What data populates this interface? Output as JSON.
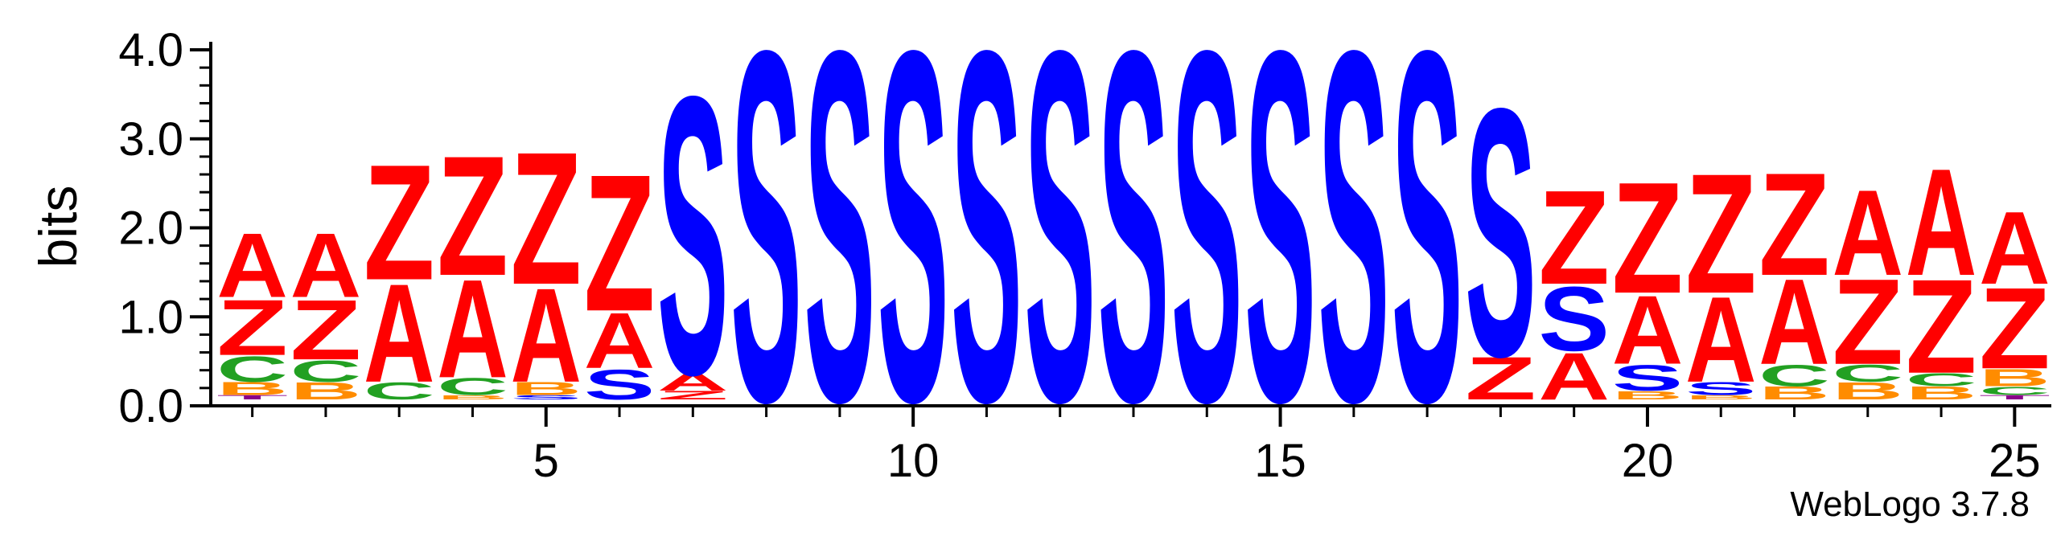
{
  "chart_data": {
    "type": "sequence-logo",
    "ylabel": "bits",
    "ylim": [
      0,
      4.0
    ],
    "y_ticks": [
      "0.0",
      "1.0",
      "2.0",
      "3.0",
      "4.0"
    ],
    "x_ticks": [
      "5",
      "10",
      "15",
      "20",
      "25"
    ],
    "x_range": [
      1,
      25
    ],
    "colors": {
      "A": "#ff0000",
      "Z": "#ff0000",
      "S": "#0000ff",
      "C": "#22a022",
      "B": "#ff8c00",
      "T": "#8a008a"
    },
    "positions": [
      {
        "pos": 1,
        "stack": [
          [
            "T",
            0.05
          ],
          [
            "B",
            0.15
          ],
          [
            "C",
            0.3
          ],
          [
            "Z",
            0.65
          ],
          [
            "A",
            0.75
          ]
        ]
      },
      {
        "pos": 2,
        "stack": [
          [
            "B",
            0.2
          ],
          [
            "C",
            0.25
          ],
          [
            "Z",
            0.7
          ],
          [
            "A",
            0.75
          ]
        ]
      },
      {
        "pos": 3,
        "stack": [
          [
            "C",
            0.2
          ],
          [
            "A",
            1.15
          ],
          [
            "Z",
            1.35
          ]
        ]
      },
      {
        "pos": 4,
        "stack": [
          [
            "B",
            0.05
          ],
          [
            "C",
            0.2
          ],
          [
            "A",
            1.15
          ],
          [
            "Z",
            1.4
          ]
        ]
      },
      {
        "pos": 5,
        "stack": [
          [
            "S",
            0.05
          ],
          [
            "B",
            0.15
          ],
          [
            "A",
            1.1
          ],
          [
            "Z",
            1.55
          ]
        ]
      },
      {
        "pos": 6,
        "stack": [
          [
            "S",
            0.35
          ],
          [
            "A",
            0.65
          ],
          [
            "Z",
            1.6
          ]
        ]
      },
      {
        "pos": 7,
        "stack": [
          [
            "Z",
            0.1
          ],
          [
            "A",
            0.2
          ],
          [
            "S",
            3.25
          ]
        ]
      },
      {
        "pos": 8,
        "stack": [
          [
            "S",
            4.1
          ]
        ]
      },
      {
        "pos": 9,
        "stack": [
          [
            "S",
            4.1
          ]
        ]
      },
      {
        "pos": 10,
        "stack": [
          [
            "S",
            4.1
          ]
        ]
      },
      {
        "pos": 11,
        "stack": [
          [
            "S",
            4.1
          ]
        ]
      },
      {
        "pos": 12,
        "stack": [
          [
            "S",
            4.1
          ]
        ]
      },
      {
        "pos": 13,
        "stack": [
          [
            "S",
            4.1
          ]
        ]
      },
      {
        "pos": 14,
        "stack": [
          [
            "S",
            4.1
          ]
        ]
      },
      {
        "pos": 15,
        "stack": [
          [
            "S",
            4.1
          ]
        ]
      },
      {
        "pos": 16,
        "stack": [
          [
            "S",
            4.1
          ]
        ]
      },
      {
        "pos": 17,
        "stack": [
          [
            "S",
            4.1
          ]
        ]
      },
      {
        "pos": 18,
        "stack": [
          [
            "Z",
            0.5
          ],
          [
            "S",
            2.9
          ]
        ]
      },
      {
        "pos": 19,
        "stack": [
          [
            "A",
            0.55
          ],
          [
            "S",
            0.75
          ],
          [
            "Z",
            1.1
          ]
        ]
      },
      {
        "pos": 20,
        "stack": [
          [
            "B",
            0.1
          ],
          [
            "S",
            0.3
          ],
          [
            "A",
            0.8
          ],
          [
            "Z",
            1.3
          ]
        ]
      },
      {
        "pos": 21,
        "stack": [
          [
            "B",
            0.05
          ],
          [
            "S",
            0.15
          ],
          [
            "A",
            1.0
          ],
          [
            "Z",
            1.4
          ]
        ]
      },
      {
        "pos": 22,
        "stack": [
          [
            "B",
            0.15
          ],
          [
            "C",
            0.25
          ],
          [
            "A",
            1.0
          ],
          [
            "Z",
            1.2
          ]
        ]
      },
      {
        "pos": 23,
        "stack": [
          [
            "B",
            0.2
          ],
          [
            "C",
            0.2
          ],
          [
            "Z",
            1.0
          ],
          [
            "A",
            1.0
          ]
        ]
      },
      {
        "pos": 24,
        "stack": [
          [
            "B",
            0.15
          ],
          [
            "C",
            0.15
          ],
          [
            "Z",
            1.1
          ],
          [
            "A",
            1.25
          ]
        ]
      },
      {
        "pos": 25,
        "stack": [
          [
            "T",
            0.05
          ],
          [
            "C",
            0.1
          ],
          [
            "B",
            0.2
          ],
          [
            "Z",
            0.95
          ],
          [
            "A",
            0.85
          ]
        ]
      }
    ]
  },
  "credit": "WebLogo 3.7.8"
}
